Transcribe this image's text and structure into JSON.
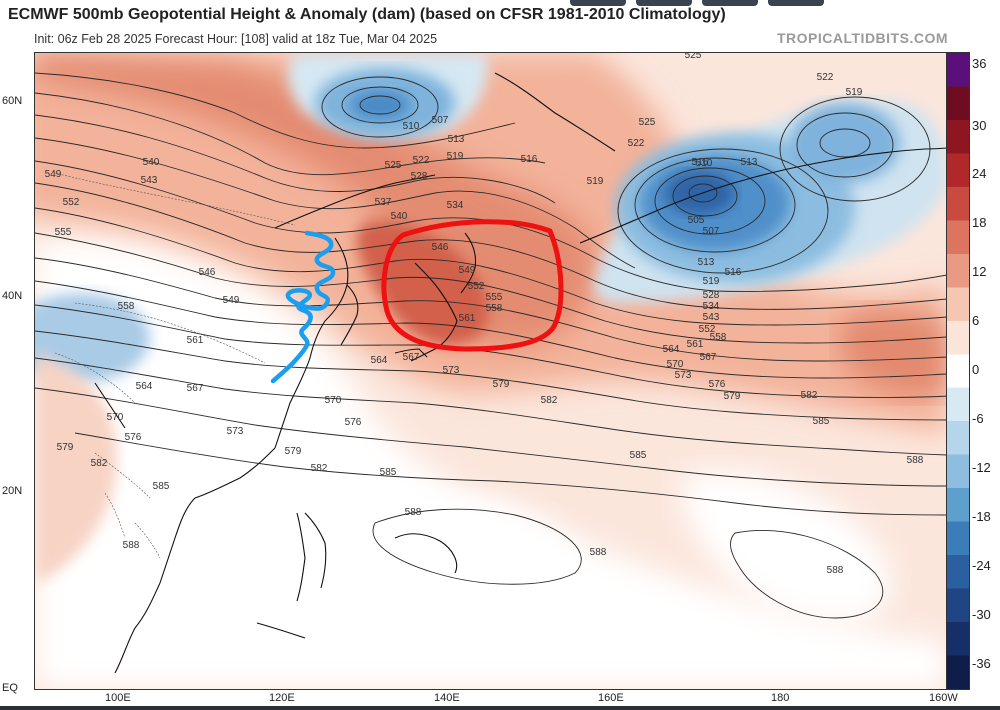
{
  "header": {
    "title": "ECMWF 500mb Geopotential Height & Anomaly (dam) (based on CFSR 1981-2010 Climatology)",
    "subtitle": "Init: 06z Feb 28 2025   Forecast Hour: [108]   valid at 18z Tue, Mar 04 2025",
    "brand": "TROPICALTIDBITS.COM"
  },
  "axes": {
    "latitudes": [
      "60N",
      "40N",
      "20N",
      "EQ"
    ],
    "longitudes": [
      "100E",
      "120E",
      "140E",
      "160E",
      "180",
      "160W"
    ]
  },
  "colorbar": {
    "ticks": [
      "36",
      "30",
      "24",
      "18",
      "12",
      "6",
      "0",
      "-6",
      "-12",
      "-18",
      "-24",
      "-30",
      "-36"
    ],
    "colors": [
      "#5a0f7a",
      "#6e0c22",
      "#8e1620",
      "#b0282a",
      "#c94a3e",
      "#dc7460",
      "#ea9a83",
      "#f5c6b2",
      "#fbe4d8",
      "#ffffff",
      "#d7e9f3",
      "#b5d6ea",
      "#8ebedf",
      "#5d9fcd",
      "#3a7db8",
      "#2a5fa0",
      "#1f4585",
      "#172f68",
      "#0f1d4a"
    ]
  },
  "contour_labels": [
    "505",
    "507",
    "510",
    "513",
    "516",
    "519",
    "522",
    "525",
    "528",
    "534",
    "537",
    "540",
    "543",
    "546",
    "549",
    "552",
    "555",
    "558",
    "561",
    "564",
    "567",
    "570",
    "573",
    "576",
    "579",
    "582",
    "585",
    "588"
  ],
  "colors": {
    "annotation_circle": "#ee1111",
    "annotation_squiggle": "#1a9ff0",
    "contour": "#2b2b2b",
    "coast": "#111111"
  }
}
